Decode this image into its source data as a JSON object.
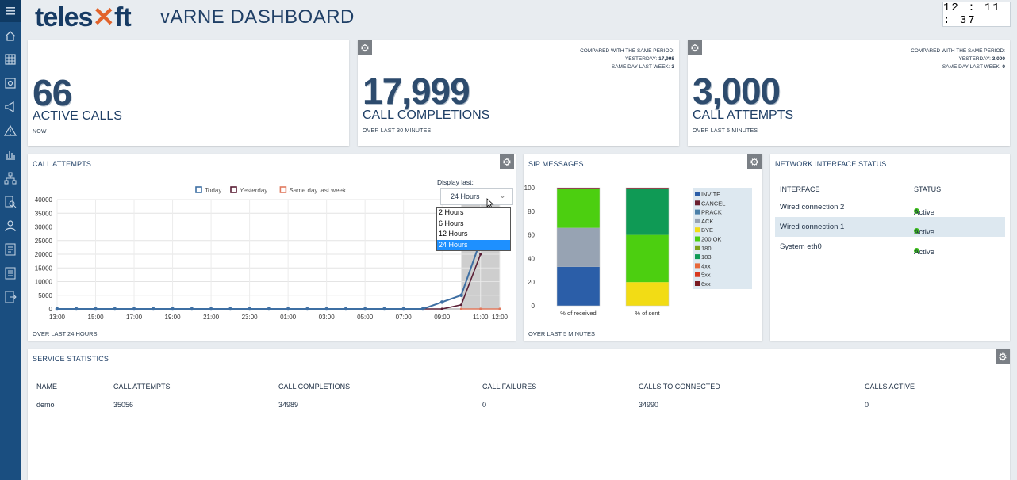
{
  "sidebar": {
    "icons": [
      "home-icon",
      "grid-icon",
      "settings-icon",
      "megaphone-icon",
      "warning-icon",
      "bar-chart-icon",
      "network-icon",
      "search-report-icon",
      "user-icon",
      "report-icon",
      "document-icon",
      "export-icon"
    ]
  },
  "header": {
    "logo_prefix": "tele",
    "logo_mid": "s",
    "logo_x": "✕",
    "logo_suffix": "ft",
    "title": "vARNE DASHBOARD",
    "clock": "12 : 11 : 37"
  },
  "kpi": {
    "active_calls": {
      "value": "66",
      "label": "ACTIVE CALLS",
      "sub": "NOW"
    },
    "call_completions": {
      "value": "17,999",
      "label": "CALL COMPLETIONS",
      "sub": "OVER LAST 30 MINUTES",
      "compare_title": "COMPARED WITH THE SAME PERIOD:",
      "yesterday_label": "YESTERDAY:",
      "yesterday": "17,998",
      "lastweek_label": "SAME DAY LAST WEEK:",
      "lastweek": "3"
    },
    "call_attempts": {
      "value": "3,000",
      "label": "CALL ATTEMPTS",
      "sub": "OVER LAST 5 MINUTES",
      "compare_title": "COMPARED WITH THE SAME PERIOD:",
      "yesterday_label": "YESTERDAY:",
      "yesterday": "3,000",
      "lastweek_label": "SAME DAY LAST WEEK:",
      "lastweek": "0"
    }
  },
  "attempts_panel": {
    "title": "CALL ATTEMPTS",
    "footer": "OVER LAST 24 HOURS",
    "display_last_label": "Display last:",
    "display_last_value": "24 Hours",
    "options": [
      "2 Hours",
      "6 Hours",
      "12 Hours",
      "24 Hours"
    ],
    "selected_option": "24 Hours"
  },
  "sip_panel": {
    "title": "SIP MESSAGES",
    "footer": "OVER LAST 5 MINUTES"
  },
  "network": {
    "title": "NETWORK INTERFACE STATUS",
    "col_interface": "INTERFACE",
    "col_status": "STATUS",
    "rows": [
      {
        "interface": "Wired connection 2",
        "status": "Active"
      },
      {
        "interface": "Wired connection 1",
        "status": "Active"
      },
      {
        "interface": "System eth0",
        "status": "Active"
      }
    ]
  },
  "service": {
    "title": "SERVICE STATISTICS",
    "headers": [
      "NAME",
      "CALL ATTEMPTS",
      "CALL COMPLETIONS",
      "CALL FAILURES",
      "CALLS TO CONNECTED",
      "CALLS ACTIVE"
    ],
    "row": [
      "demo",
      "35056",
      "34989",
      "0",
      "34990",
      "0"
    ]
  },
  "colors": {
    "today": "#3e6fa3",
    "yesterday": "#5a1e35",
    "lastweek": "#e07a5f"
  },
  "chart_data": [
    {
      "type": "line",
      "title": "",
      "xlabel": "",
      "ylabel": "",
      "categories": [
        "13:00",
        "14:00",
        "15:00",
        "16:00",
        "17:00",
        "18:00",
        "19:00",
        "20:00",
        "21:00",
        "22:00",
        "23:00",
        "00:00",
        "01:00",
        "02:00",
        "03:00",
        "04:00",
        "05:00",
        "06:00",
        "07:00",
        "08:00",
        "09:00",
        "10:00",
        "11:00",
        "12:00"
      ],
      "x_tick_labels": [
        "13:00",
        "15:00",
        "17:00",
        "19:00",
        "21:00",
        "23:00",
        "01:00",
        "03:00",
        "05:00",
        "07:00",
        "09:00",
        "11:00",
        "12:00"
      ],
      "ylim": [
        0,
        40000
      ],
      "yticks": [
        0,
        5000,
        10000,
        15000,
        20000,
        25000,
        30000,
        35000,
        40000
      ],
      "legend": "top",
      "series": [
        {
          "name": "Today",
          "values": [
            0,
            0,
            0,
            0,
            0,
            0,
            0,
            0,
            0,
            0,
            0,
            0,
            0,
            0,
            0,
            0,
            0,
            0,
            0,
            0,
            2500,
            5000,
            25000,
            null
          ]
        },
        {
          "name": "Yesterday",
          "values": [
            0,
            0,
            0,
            0,
            0,
            0,
            0,
            0,
            0,
            0,
            0,
            0,
            0,
            0,
            0,
            0,
            0,
            0,
            0,
            0,
            0,
            1500,
            20000,
            null
          ]
        },
        {
          "name": "Same day last week",
          "values": [
            null,
            null,
            null,
            null,
            null,
            null,
            null,
            null,
            null,
            null,
            null,
            null,
            null,
            null,
            null,
            null,
            null,
            null,
            null,
            null,
            null,
            0,
            0,
            0
          ]
        }
      ]
    },
    {
      "type": "bar",
      "stacked": true,
      "title": "",
      "categories": [
        "% of received",
        "% of sent"
      ],
      "ylim": [
        0,
        100
      ],
      "yticks": [
        0,
        20,
        40,
        60,
        80,
        100
      ],
      "legend": "right",
      "series": [
        {
          "name": "INVITE",
          "color": "#2b5ea8",
          "values": [
            33,
            0
          ]
        },
        {
          "name": "CANCEL",
          "color": "#6b1f2e",
          "values": [
            0,
            0
          ]
        },
        {
          "name": "PRACK",
          "color": "#4a7fa8",
          "values": [
            0,
            0
          ]
        },
        {
          "name": "ACK",
          "color": "#97a3b3",
          "values": [
            33,
            0
          ]
        },
        {
          "name": "BYE",
          "color": "#f2dc15",
          "values": [
            0,
            20
          ]
        },
        {
          "name": "200 OK",
          "color": "#4ccf10",
          "values": [
            33,
            40
          ]
        },
        {
          "name": "180",
          "color": "#7ea21a",
          "values": [
            0,
            0
          ]
        },
        {
          "name": "183",
          "color": "#0f9a55",
          "values": [
            0,
            39
          ]
        },
        {
          "name": "4xx",
          "color": "#e7683a",
          "values": [
            0,
            0
          ]
        },
        {
          "name": "5xx",
          "color": "#d8391f",
          "values": [
            0,
            0
          ]
        },
        {
          "name": "6xx",
          "color": "#7a1b22",
          "values": [
            1,
            1
          ]
        }
      ]
    }
  ]
}
